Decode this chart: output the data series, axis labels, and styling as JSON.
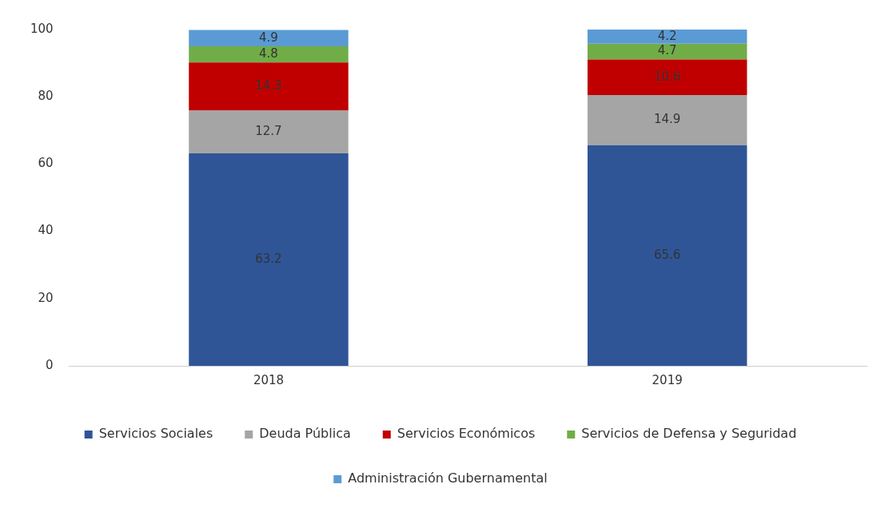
{
  "chart_data": {
    "type": "bar",
    "stacked": true,
    "categories": [
      "2018",
      "2019"
    ],
    "series": [
      {
        "name": "Servicios Sociales",
        "color": "#2f5597",
        "values": [
          63.2,
          65.6
        ]
      },
      {
        "name": "Deuda Pública",
        "color": "#a5a5a5",
        "values": [
          12.7,
          14.9
        ]
      },
      {
        "name": "Servicios Económicos",
        "color": "#c00000",
        "values": [
          14.3,
          10.6
        ]
      },
      {
        "name": "Servicios de Defensa y Seguridad",
        "color": "#70ad47",
        "values": [
          4.8,
          4.7
        ]
      },
      {
        "name": "Administración Gubernamental",
        "color": "#5b9bd5",
        "values": [
          4.9,
          4.2
        ]
      }
    ],
    "ylim": [
      0,
      100
    ],
    "yticks": [
      0,
      20,
      40,
      60,
      80,
      100
    ],
    "grid": false,
    "legend": "bottom",
    "data_labels": true
  }
}
